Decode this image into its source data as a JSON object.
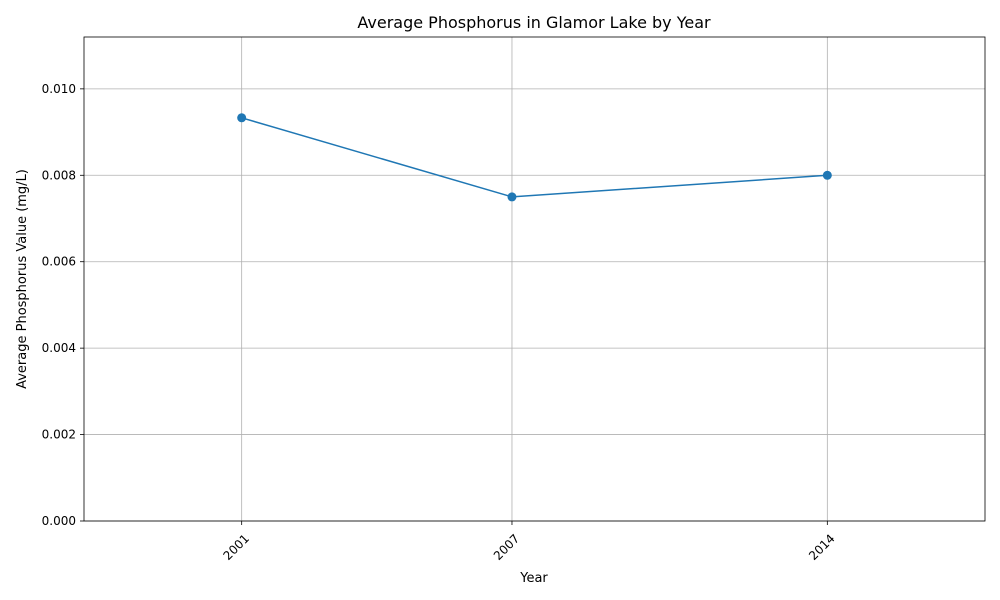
{
  "chart_data": {
    "type": "line",
    "title": "Average Phosphorus in Glamor Lake by Year",
    "xlabel": "Year",
    "ylabel": "Average Phosphorus Value (mg/L)",
    "x": [
      "2001",
      "2007",
      "2014"
    ],
    "x_numeric": [
      2001,
      2007,
      2014
    ],
    "xlim": [
      1997.5,
      2017.5
    ],
    "ylim": [
      0,
      0.0112
    ],
    "yticks": [
      0.0,
      0.002,
      0.004,
      0.006,
      0.008,
      0.01
    ],
    "ytick_labels": [
      "0.000",
      "0.002",
      "0.004",
      "0.006",
      "0.008",
      "0.010"
    ],
    "xtick_labels": [
      "2001",
      "2007",
      "2014"
    ],
    "series": [
      {
        "values": [
          0.00933,
          0.0075,
          0.008
        ],
        "color": "#1f77b4",
        "marker": "circle"
      }
    ],
    "grid": true,
    "xtick_rotation_deg": 45
  }
}
